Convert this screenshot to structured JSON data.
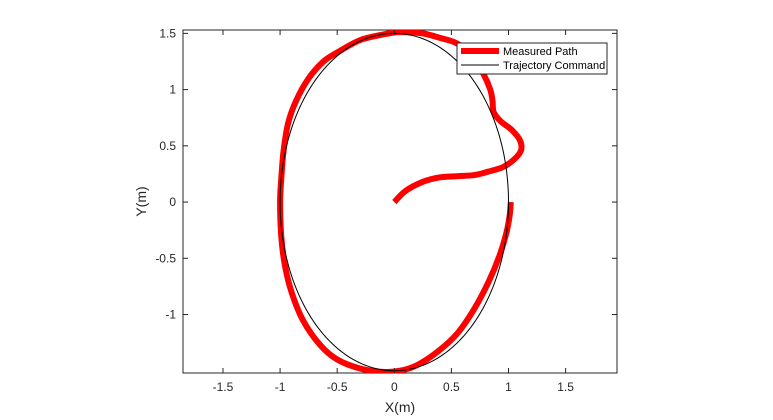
{
  "chart_data": {
    "type": "line",
    "xlabel": "X(m)",
    "ylabel": "Y(m)",
    "xlim": [
      -1.85,
      1.95
    ],
    "ylim": [
      -1.52,
      1.53
    ],
    "xticks": [
      -1.5,
      -1,
      -0.5,
      0,
      0.5,
      1,
      1.5
    ],
    "xtick_labels": [
      "-1.5",
      "-1",
      "-0.5",
      "0",
      "0.5",
      "1",
      "1.5"
    ],
    "yticks": [
      -1,
      -0.5,
      0,
      0.5,
      1,
      1.5
    ],
    "ytick_labels": [
      "-1",
      "-0.5",
      "0",
      "0.5",
      "1",
      "1.5"
    ],
    "grid": false,
    "legend_position": "top-right",
    "series": [
      {
        "name": "Measured Path",
        "color": "#ff0000",
        "x": [
          0.0,
          0.1,
          0.25,
          0.4,
          0.55,
          0.7,
          0.82,
          0.95,
          1.05,
          1.11,
          1.1,
          1.03,
          0.93,
          0.87,
          0.86,
          0.84,
          0.78,
          0.68,
          0.55,
          0.4,
          0.25,
          0.1,
          0.02,
          -0.1,
          -0.3,
          -0.5,
          -0.62,
          -0.75,
          -0.86,
          -0.93,
          -0.97,
          -0.99,
          -1.0,
          -0.99,
          -0.96,
          -0.9,
          -0.8,
          -0.65,
          -0.5,
          -0.3,
          -0.1,
          0.05,
          0.2,
          0.38,
          0.55,
          0.7,
          0.83,
          0.92,
          0.98,
          1.01,
          1.02
        ],
        "y": [
          0.0,
          0.1,
          0.18,
          0.22,
          0.23,
          0.24,
          0.27,
          0.31,
          0.38,
          0.46,
          0.55,
          0.64,
          0.72,
          0.8,
          0.9,
          1.0,
          1.14,
          1.3,
          1.41,
          1.46,
          1.5,
          1.51,
          1.51,
          1.49,
          1.44,
          1.33,
          1.25,
          1.1,
          0.9,
          0.7,
          0.45,
          0.2,
          0.0,
          -0.3,
          -0.55,
          -0.8,
          -1.05,
          -1.27,
          -1.4,
          -1.48,
          -1.51,
          -1.5,
          -1.45,
          -1.33,
          -1.17,
          -0.95,
          -0.7,
          -0.48,
          -0.28,
          -0.12,
          0.0
        ],
        "line_width": 6
      },
      {
        "name": "Trajectory Command",
        "color": "#000000",
        "shape": "ellipse",
        "center": [
          0,
          0
        ],
        "radius_x": 1,
        "radius_y": 1.5,
        "line_width": 1
      }
    ]
  }
}
